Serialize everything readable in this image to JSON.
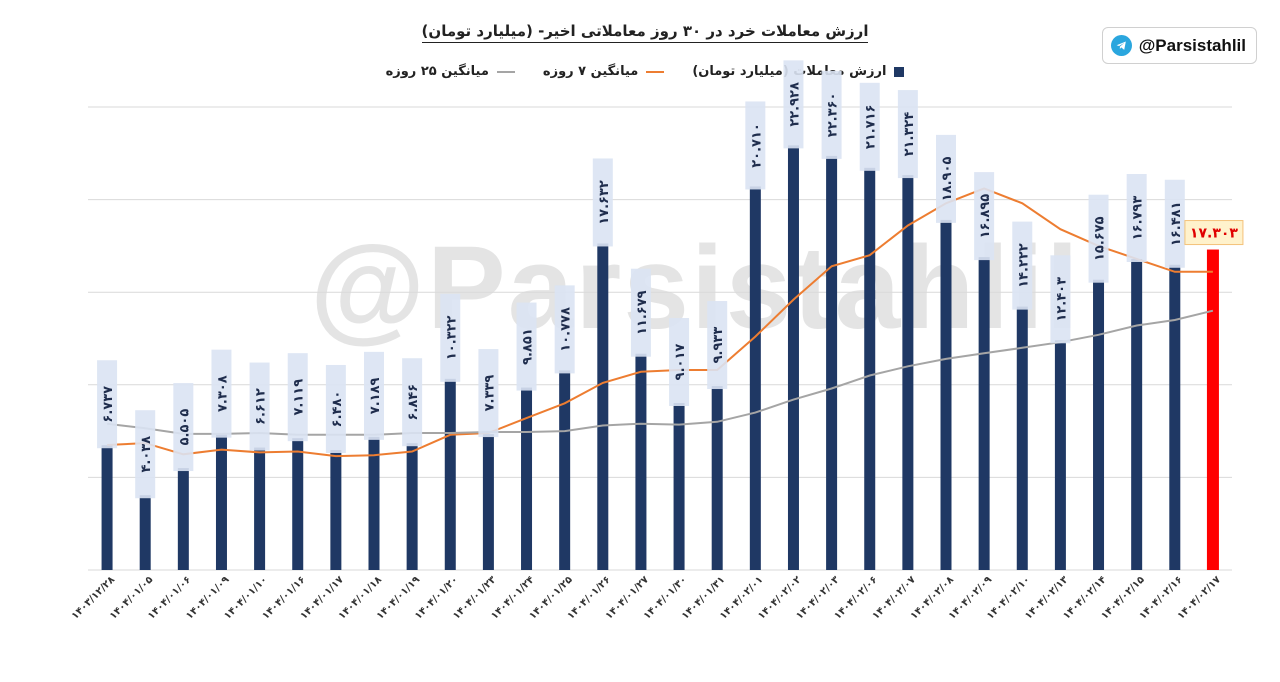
{
  "chart_data": {
    "type": "bar",
    "title": "ارزش معاملات خرد در ۳۰ روز معاملاتی اخیر- (میلیارد تومان)",
    "xlabel": "",
    "ylabel": "",
    "ylim": [
      0,
      25000
    ],
    "grid": true,
    "legend_position": "top",
    "categories": [
      "۱۴۰۳/۱۲/۲۸",
      "۱۴۰۴/۰۱/۰۵",
      "۱۴۰۴/۰۱/۰۶",
      "۱۴۰۴/۰۱/۰۹",
      "۱۴۰۴/۰۱/۱۰",
      "۱۴۰۴/۰۱/۱۶",
      "۱۴۰۴/۰۱/۱۷",
      "۱۴۰۴/۰۱/۱۸",
      "۱۴۰۴/۰۱/۱۹",
      "۱۴۰۴/۰۱/۲۰",
      "۱۴۰۴/۰۱/۲۳",
      "۱۴۰۴/۰۱/۲۴",
      "۱۴۰۴/۰۱/۲۵",
      "۱۴۰۴/۰۱/۲۶",
      "۱۴۰۴/۰۱/۲۷",
      "۱۴۰۴/۰۱/۳۰",
      "۱۴۰۴/۰۱/۳۱",
      "۱۴۰۴/۰۲/۰۱",
      "۱۴۰۴/۰۲/۰۲",
      "۱۴۰۴/۰۲/۰۳",
      "۱۴۰۴/۰۲/۰۶",
      "۱۴۰۴/۰۲/۰۷",
      "۱۴۰۴/۰۲/۰۸",
      "۱۴۰۴/۰۲/۰۹",
      "۱۴۰۴/۰۲/۱۰",
      "۱۴۰۴/۰۲/۱۳",
      "۱۴۰۴/۰۲/۱۴",
      "۱۴۰۴/۰۲/۱۵",
      "۱۴۰۴/۰۲/۱۶",
      "۱۴۰۴/۰۲/۱۷"
    ],
    "series": [
      {
        "name": "ارزش معاملات (میلیارد تومان)",
        "type": "bar",
        "color": "#1f3864",
        "highlight_last_color": "#ff0000",
        "values": [
          6737,
          4038,
          5505,
          7308,
          6612,
          7119,
          6480,
          7189,
          6846,
          10322,
          7339,
          9851,
          10778,
          17632,
          11679,
          9017,
          9933,
          20710,
          22928,
          22360,
          21716,
          21324,
          18905,
          16895,
          14222,
          12403,
          15675,
          16793,
          16481,
          17303
        ],
        "labels": [
          "۶.۷۳۷",
          "۴.۰۳۸",
          "۵.۵۰۵",
          "۷.۳۰۸",
          "۶.۶۱۲",
          "۷.۱۱۹",
          "۶.۴۸۰",
          "۷.۱۸۹",
          "۶.۸۴۶",
          "۱۰.۳۲۲",
          "۷.۳۳۹",
          "۹.۸۵۱",
          "۱۰.۷۷۸",
          "۱۷.۶۳۲",
          "۱۱.۶۷۹",
          "۹.۰۱۷",
          "۹.۹۳۳",
          "۲۰.۷۱۰",
          "۲۲.۹۲۸",
          "۲۲.۳۶۰",
          "۲۱.۷۱۶",
          "۲۱.۳۲۴",
          "۱۸.۹۰۵",
          "۱۶.۸۹۵",
          "۱۴.۲۲۲",
          "۱۲.۴۰۳",
          "۱۵.۶۷۵",
          "۱۶.۷۹۳",
          "۱۶.۴۸۱",
          "۱۷.۳۰۳"
        ]
      },
      {
        "name": "میانگین ۷ روزه",
        "type": "line",
        "color": "#ed7d31",
        "values": [
          6750,
          6850,
          6250,
          6500,
          6350,
          6400,
          6150,
          6200,
          6400,
          7300,
          7400,
          8200,
          9000,
          10100,
          10700,
          10800,
          10800,
          12600,
          14600,
          16400,
          17000,
          18600,
          19800,
          20600,
          19800,
          18400,
          17500,
          16800,
          16100,
          16100
        ]
      },
      {
        "name": "میانگین ۲۵ روزه",
        "type": "line",
        "color": "#a5a5a5",
        "values": [
          7900,
          7650,
          7350,
          7350,
          7400,
          7300,
          7300,
          7300,
          7400,
          7400,
          7450,
          7450,
          7500,
          7800,
          7900,
          7850,
          8000,
          8500,
          9200,
          9800,
          10500,
          11000,
          11400,
          11700,
          12000,
          12300,
          12700,
          13200,
          13500,
          14000
        ]
      }
    ]
  },
  "badge": {
    "handle": "@Parsistahlil",
    "icon": "telegram-icon"
  },
  "watermark": "@Parsistahlil"
}
